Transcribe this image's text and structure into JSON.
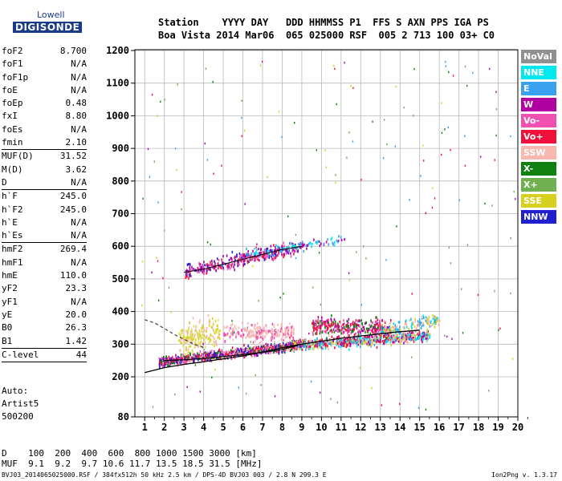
{
  "logo": {
    "top": "Lowell",
    "main": "DIGISONDE"
  },
  "header": {
    "line1": "Station    YYYY DAY   DDD HHMMSS P1  FFS S AXN PPS IGA PS",
    "line2": "Boa Vista 2014 Mar06  065 025000 RSF  005 2 713 100 03+ C0"
  },
  "params": [
    {
      "name": "foF2",
      "value": "8.700"
    },
    {
      "name": "foF1",
      "value": "N/A"
    },
    {
      "name": "foF1p",
      "value": "N/A"
    },
    {
      "name": "foE",
      "value": "N/A"
    },
    {
      "name": "foEp",
      "value": "0.48"
    },
    {
      "name": "fxI",
      "value": "8.80"
    },
    {
      "name": "foEs",
      "value": "N/A"
    },
    {
      "name": "fmin",
      "value": "2.10",
      "sep": true
    },
    {
      "name": "MUF(D)",
      "value": "31.52"
    },
    {
      "name": "M(D)",
      "value": "3.62"
    },
    {
      "name": "D",
      "value": "N/A",
      "sep": true
    },
    {
      "name": "h`F",
      "value": "245.0"
    },
    {
      "name": "h`F2",
      "value": "245.0"
    },
    {
      "name": "h`E",
      "value": "N/A"
    },
    {
      "name": "h`Es",
      "value": "N/A",
      "sep": true
    },
    {
      "name": "hmF2",
      "value": "269.4"
    },
    {
      "name": "hmF1",
      "value": "N/A"
    },
    {
      "name": "hmE",
      "value": "110.0"
    },
    {
      "name": "yF2",
      "value": "23.3"
    },
    {
      "name": "yF1",
      "value": "N/A"
    },
    {
      "name": "yE",
      "value": "20.0"
    },
    {
      "name": "B0",
      "value": "26.3"
    },
    {
      "name": "B1",
      "value": "1.42",
      "sep": true
    },
    {
      "name": "C-level",
      "value": "44",
      "sep": true
    }
  ],
  "auto": {
    "line1": "Auto:",
    "line2": "Artist5",
    "line3": "500200"
  },
  "legend": [
    {
      "label": "NoVal",
      "color": "#909090"
    },
    {
      "label": "NNE",
      "color": "#00e8f0"
    },
    {
      "label": "E",
      "color": "#3aa0f0"
    },
    {
      "label": "W",
      "color": "#b000a0"
    },
    {
      "label": "Vo-",
      "color": "#f050b0"
    },
    {
      "label": "Vo+",
      "color": "#f0103a"
    },
    {
      "label": "SSW",
      "color": "#f8b8b0"
    },
    {
      "label": "X-",
      "color": "#108010"
    },
    {
      "label": "X+",
      "color": "#70b050"
    },
    {
      "label": "SSE",
      "color": "#d8d020"
    },
    {
      "label": "NNW",
      "color": "#2020d0"
    }
  ],
  "muf_table": {
    "line1": "D    100  200  400  600  800 1000 1500 3000 [km]",
    "line2": "MUF  9.1  9.2  9.7 10.6 11.7 13.5 18.5 31.5 [MHz]"
  },
  "footer": "BVJ03_2014065025000.RSF / 384fx512h 50 kHz 2.5 km / DPS-4D BVJ03 003 / 2.8 N 299.3 E",
  "version": "Ion2Png v. 1.3.17",
  "chart_data": {
    "type": "scatter",
    "x_unit": "MHz",
    "y_unit": "km",
    "xlim": [
      0.5,
      20.0
    ],
    "ylim": [
      80,
      1200
    ],
    "xticks": [
      1,
      2,
      3,
      4,
      5,
      6,
      7,
      8,
      9,
      10,
      11,
      12,
      13,
      14,
      15,
      16,
      17,
      18,
      19,
      20
    ],
    "yticks": [
      80,
      200,
      300,
      400,
      500,
      600,
      700,
      800,
      900,
      1000,
      1100,
      1200
    ],
    "grid": true,
    "legend_position": "right",
    "clusters": [
      {
        "x0": 1.7,
        "x1": 8.8,
        "h0": 248,
        "h1": 300,
        "spread": 14,
        "n": 900,
        "colors": [
          "#b000a0",
          "#f0103a",
          "#f050b0",
          "#108010",
          "#2020d0",
          "#f8b8b0"
        ]
      },
      {
        "x0": 8.5,
        "x1": 15.5,
        "h0": 300,
        "h1": 330,
        "spread": 16,
        "n": 700,
        "colors": [
          "#3aa0f0",
          "#00e8f0",
          "#f0103a",
          "#f8b8b0",
          "#b000a0",
          "#d8d020"
        ]
      },
      {
        "x0": 2.7,
        "x1": 4.8,
        "h0": 320,
        "h1": 340,
        "spread": 45,
        "n": 220,
        "colors": [
          "#d8d020",
          "#f8b8b0",
          "#e0e060"
        ]
      },
      {
        "x0": 5.0,
        "x1": 8.6,
        "h0": 340,
        "h1": 340,
        "spread": 25,
        "n": 260,
        "colors": [
          "#f8b8b0",
          "#f0c0c0",
          "#f050b0"
        ]
      },
      {
        "x0": 9.5,
        "x1": 13.5,
        "h0": 360,
        "h1": 350,
        "spread": 25,
        "n": 320,
        "colors": [
          "#f0103a",
          "#b000a0",
          "#f050b0",
          "#108010"
        ]
      },
      {
        "x0": 3.0,
        "x1": 8.8,
        "h0": 525,
        "h1": 600,
        "spread": 22,
        "n": 320,
        "colors": [
          "#b000a0",
          "#f0103a",
          "#2020d0",
          "#f050b0"
        ]
      },
      {
        "x0": 6.0,
        "x1": 11.2,
        "h0": 580,
        "h1": 625,
        "spread": 14,
        "n": 120,
        "colors": [
          "#3aa0f0",
          "#00e8f0",
          "#b000a0"
        ]
      },
      {
        "x0": 13.0,
        "x1": 16.0,
        "h0": 345,
        "h1": 380,
        "spread": 18,
        "n": 150,
        "colors": [
          "#f8b8b0",
          "#3aa0f0",
          "#d8d020",
          "#00e8f0"
        ]
      }
    ],
    "f2_profile": [
      [
        1.0,
        213
      ],
      [
        2.0,
        228
      ],
      [
        3.0,
        238
      ],
      [
        4.0,
        246
      ],
      [
        5.0,
        255
      ],
      [
        6.0,
        264
      ],
      [
        7.0,
        276
      ],
      [
        8.0,
        289
      ],
      [
        9.0,
        300
      ],
      [
        10.0,
        309
      ],
      [
        11.0,
        318
      ],
      [
        12.0,
        325
      ],
      [
        13.0,
        332
      ],
      [
        14.0,
        338
      ],
      [
        15.0,
        343
      ]
    ],
    "virtual_trace": [
      [
        2.0,
        250
      ],
      [
        3.0,
        252
      ],
      [
        4.0,
        256
      ],
      [
        5.0,
        262
      ],
      [
        6.0,
        268
      ],
      [
        7.0,
        275
      ],
      [
        8.0,
        284
      ],
      [
        8.8,
        296
      ]
    ],
    "dashed_trace": [
      [
        1.0,
        375
      ],
      [
        1.5,
        365
      ],
      [
        2.0,
        348
      ],
      [
        2.5,
        330
      ],
      [
        3.0,
        315
      ],
      [
        3.5,
        300
      ],
      [
        4.0,
        290
      ]
    ],
    "x_trace": [
      [
        3.0,
        520
      ],
      [
        4.0,
        530
      ],
      [
        5.0,
        545
      ],
      [
        6.0,
        560
      ],
      [
        7.0,
        575
      ],
      [
        8.0,
        590
      ],
      [
        9.0,
        600
      ]
    ]
  }
}
